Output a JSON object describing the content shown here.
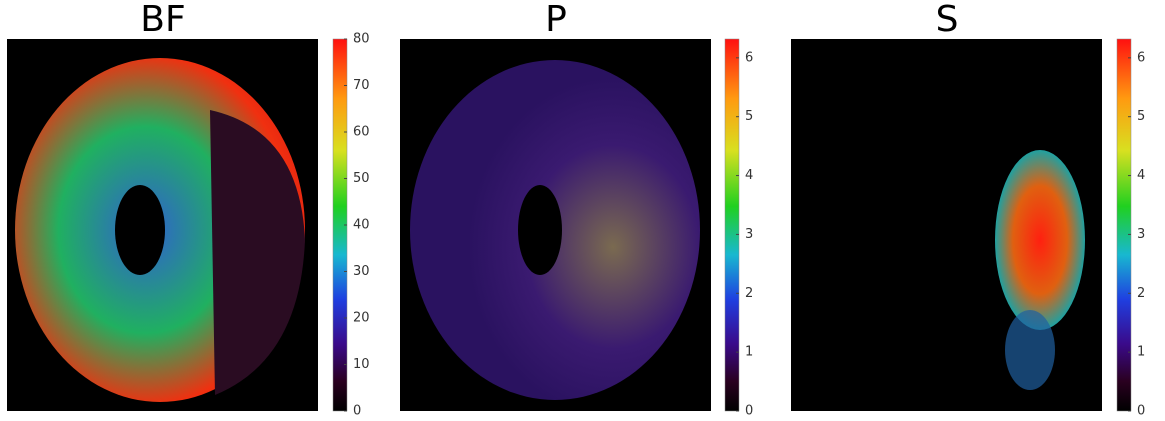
{
  "panels": [
    {
      "title": "BF",
      "colorbar": {
        "lim": [
          0,
          80
        ],
        "ticks": [
          0,
          10,
          20,
          30,
          40,
          50,
          60,
          70,
          80
        ]
      }
    },
    {
      "title": "P",
      "colorbar": {
        "lim": [
          0,
          6.32
        ],
        "ticks": [
          0,
          1,
          2,
          3,
          4,
          5,
          6
        ]
      }
    },
    {
      "title": "S",
      "colorbar": {
        "lim": [
          0,
          6.32
        ],
        "ticks": [
          0,
          1,
          2,
          3,
          4,
          5,
          6
        ]
      }
    }
  ]
}
